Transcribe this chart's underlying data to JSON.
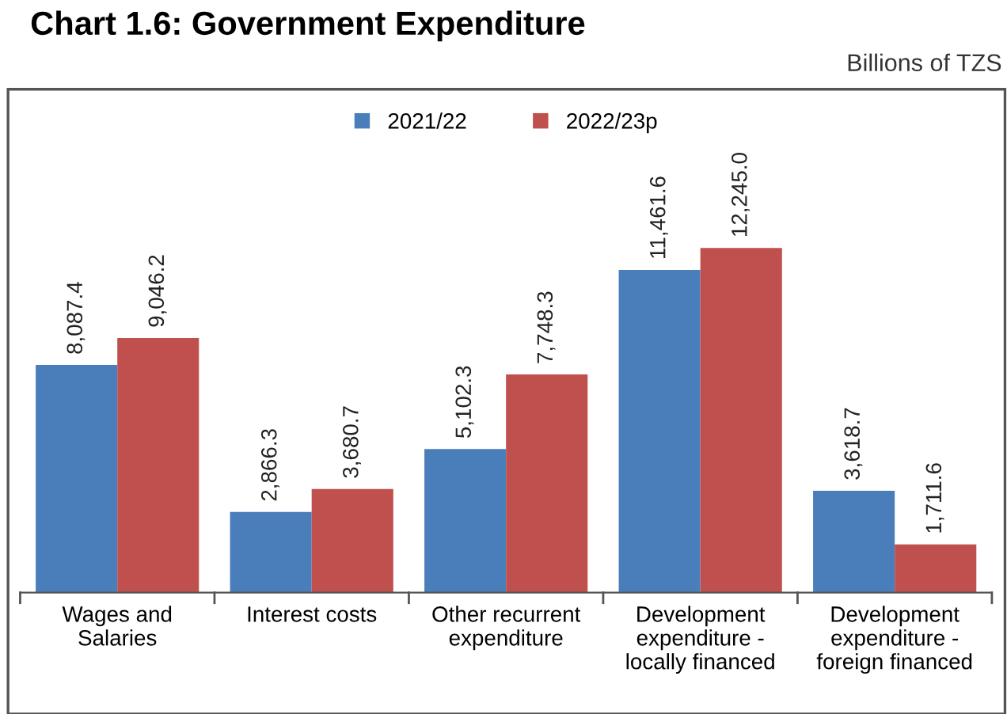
{
  "chart_data": {
    "type": "bar",
    "title": "Chart 1.6: Government Expenditure",
    "subtitle": "Billions of TZS",
    "categories": [
      "Wages and\nSalaries",
      "Interest costs",
      "Other recurrent\nexpenditure",
      "Development\nexpenditure -\nlocally financed",
      "Development\nexpenditure -\nforeign financed"
    ],
    "series": [
      {
        "name": "2021/22",
        "color": "#4a7ebb",
        "values": [
          8087.4,
          2866.3,
          5102.3,
          11461.6,
          3618.7
        ],
        "value_labels": [
          "8,087.4",
          "2,866.3",
          "5,102.3",
          "11,461.6",
          "3,618.7"
        ]
      },
      {
        "name": "2022/23p",
        "color": "#c0504d",
        "values": [
          9046.2,
          3680.7,
          7748.3,
          12245.0,
          1711.6
        ],
        "value_labels": [
          "9,046.2",
          "3,680.7",
          "7,748.3",
          "12,245.0",
          "1,711.6"
        ]
      }
    ],
    "legend": "top"
  }
}
